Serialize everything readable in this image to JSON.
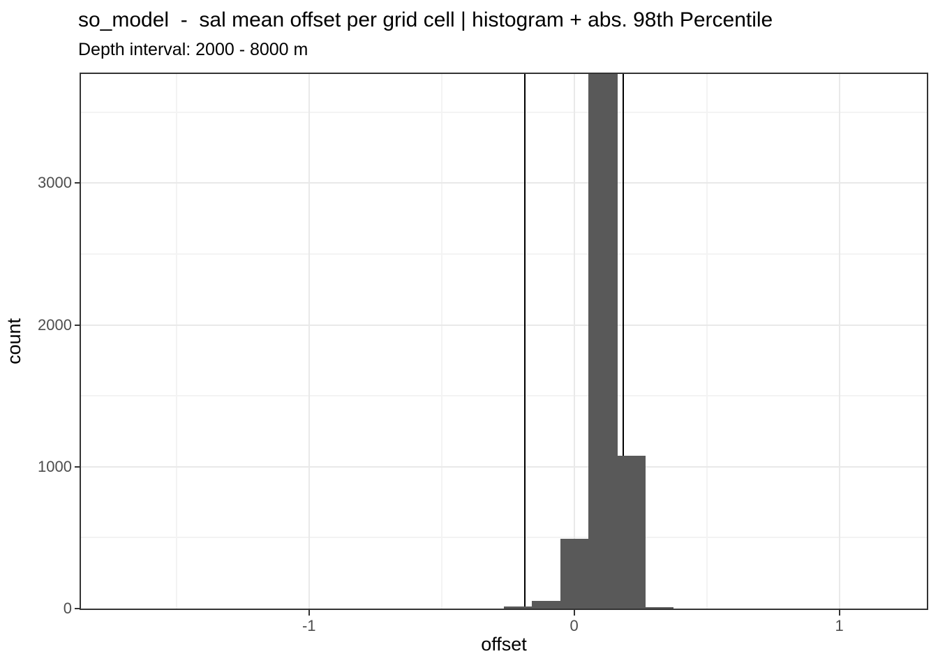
{
  "chart_data": {
    "type": "bar",
    "subtype": "histogram",
    "title": "so_model  -  sal mean offset per grid cell | histogram + abs. 98th Percentile",
    "subtitle": "Depth interval: 2000 - 8000 m",
    "x_axis": {
      "label": "offset",
      "range": [
        -1.86,
        1.33
      ],
      "ticks": [
        {
          "value": -1,
          "label": "-1"
        },
        {
          "value": 0,
          "label": "0"
        },
        {
          "value": 1,
          "label": "1"
        }
      ],
      "minor_ticks": [
        -1.5,
        -0.5,
        0.5
      ]
    },
    "y_axis": {
      "label": "count",
      "range": [
        0,
        3770
      ],
      "ticks": [
        {
          "value": 0,
          "label": "0"
        },
        {
          "value": 1000,
          "label": "1000"
        },
        {
          "value": 2000,
          "label": "2000"
        },
        {
          "value": 3000,
          "label": "3000"
        }
      ],
      "minor_ticks": [
        500,
        1500,
        2500,
        3500
      ]
    },
    "bins": [
      {
        "x0": -0.266,
        "x1": -0.161,
        "count": 16
      },
      {
        "x0": -0.161,
        "x1": -0.053,
        "count": 55
      },
      {
        "x0": -0.053,
        "x1": 0.053,
        "count": 490
      },
      {
        "x0": 0.053,
        "x1": 0.163,
        "count": 3770,
        "clipped_at_top": true
      },
      {
        "x0": 0.163,
        "x1": 0.268,
        "count": 1080
      },
      {
        "x0": 0.268,
        "x1": 0.374,
        "count": 12
      }
    ],
    "vlines": {
      "values": [
        -0.186,
        0.186
      ],
      "meaning": "abs. 98th percentile of offset",
      "color": "#000000"
    },
    "style": {
      "bar_fill": "#595959",
      "grid_major": "#e9e9e9",
      "grid_minor": "#f3f3f3",
      "panel_border": "#333333",
      "tick_color": "#333333",
      "tick_label_color": "#4d4d4d",
      "text_color": "#000000",
      "background": "#ffffff"
    },
    "grid": "major+minor",
    "legend": "none"
  }
}
